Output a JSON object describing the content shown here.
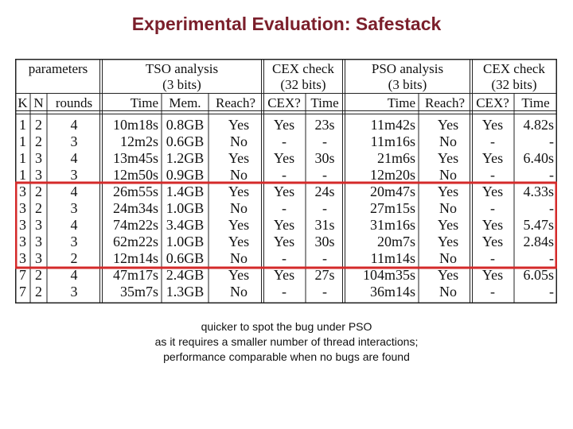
{
  "title": "Experimental Evaluation: Safestack",
  "table": {
    "group_headers": [
      {
        "line1": "parameters",
        "line2": ""
      },
      {
        "line1": "TSO analysis",
        "line2": "(3 bits)"
      },
      {
        "line1": "CEX check",
        "line2": "(32 bits)"
      },
      {
        "line1": "PSO analysis",
        "line2": "(3 bits)"
      },
      {
        "line1": "CEX check",
        "line2": "(32 bits)"
      }
    ],
    "columns": [
      "K",
      "N",
      "rounds",
      "Time",
      "Mem.",
      "Reach?",
      "CEX?",
      "Time",
      "Time",
      "Reach?",
      "CEX?",
      "Time"
    ],
    "rows": [
      [
        "1",
        "2",
        "4",
        "10m18s",
        "0.8GB",
        "Yes",
        "Yes",
        "23s",
        "11m42s",
        "Yes",
        "Yes",
        "4.82s"
      ],
      [
        "1",
        "2",
        "3",
        "12m2s",
        "0.6GB",
        "No",
        "-",
        "-",
        "11m16s",
        "No",
        "-",
        "-"
      ],
      [
        "1",
        "3",
        "4",
        "13m45s",
        "1.2GB",
        "Yes",
        "Yes",
        "30s",
        "21m6s",
        "Yes",
        "Yes",
        "6.40s"
      ],
      [
        "1",
        "3",
        "3",
        "12m50s",
        "0.9GB",
        "No",
        "-",
        "-",
        "12m20s",
        "No",
        "-",
        "-"
      ],
      [
        "3",
        "2",
        "4",
        "26m55s",
        "1.4GB",
        "Yes",
        "Yes",
        "24s",
        "20m47s",
        "Yes",
        "Yes",
        "4.33s"
      ],
      [
        "3",
        "2",
        "3",
        "24m34s",
        "1.0GB",
        "No",
        "-",
        "-",
        "27m15s",
        "No",
        "-",
        "-"
      ],
      [
        "3",
        "3",
        "4",
        "74m22s",
        "3.4GB",
        "Yes",
        "Yes",
        "31s",
        "31m16s",
        "Yes",
        "Yes",
        "5.47s"
      ],
      [
        "3",
        "3",
        "3",
        "62m22s",
        "1.0GB",
        "Yes",
        "Yes",
        "30s",
        "20m7s",
        "Yes",
        "Yes",
        "2.84s"
      ],
      [
        "3",
        "3",
        "2",
        "12m14s",
        "0.6GB",
        "No",
        "-",
        "-",
        "11m14s",
        "No",
        "-",
        "-"
      ],
      [
        "7",
        "2",
        "4",
        "47m17s",
        "2.4GB",
        "Yes",
        "Yes",
        "27s",
        "104m35s",
        "Yes",
        "Yes",
        "6.05s"
      ],
      [
        "7",
        "2",
        "3",
        "35m7s",
        "1.3GB",
        "No",
        "-",
        "-",
        "36m14s",
        "No",
        "-",
        "-"
      ]
    ],
    "highlight_rows": [
      4,
      8
    ],
    "highlight_color": "#d42a2a"
  },
  "caption": [
    "quicker to spot the bug under PSO",
    "as it requires a smaller number of thread interactions;",
    "performance comparable when no bugs are found"
  ]
}
